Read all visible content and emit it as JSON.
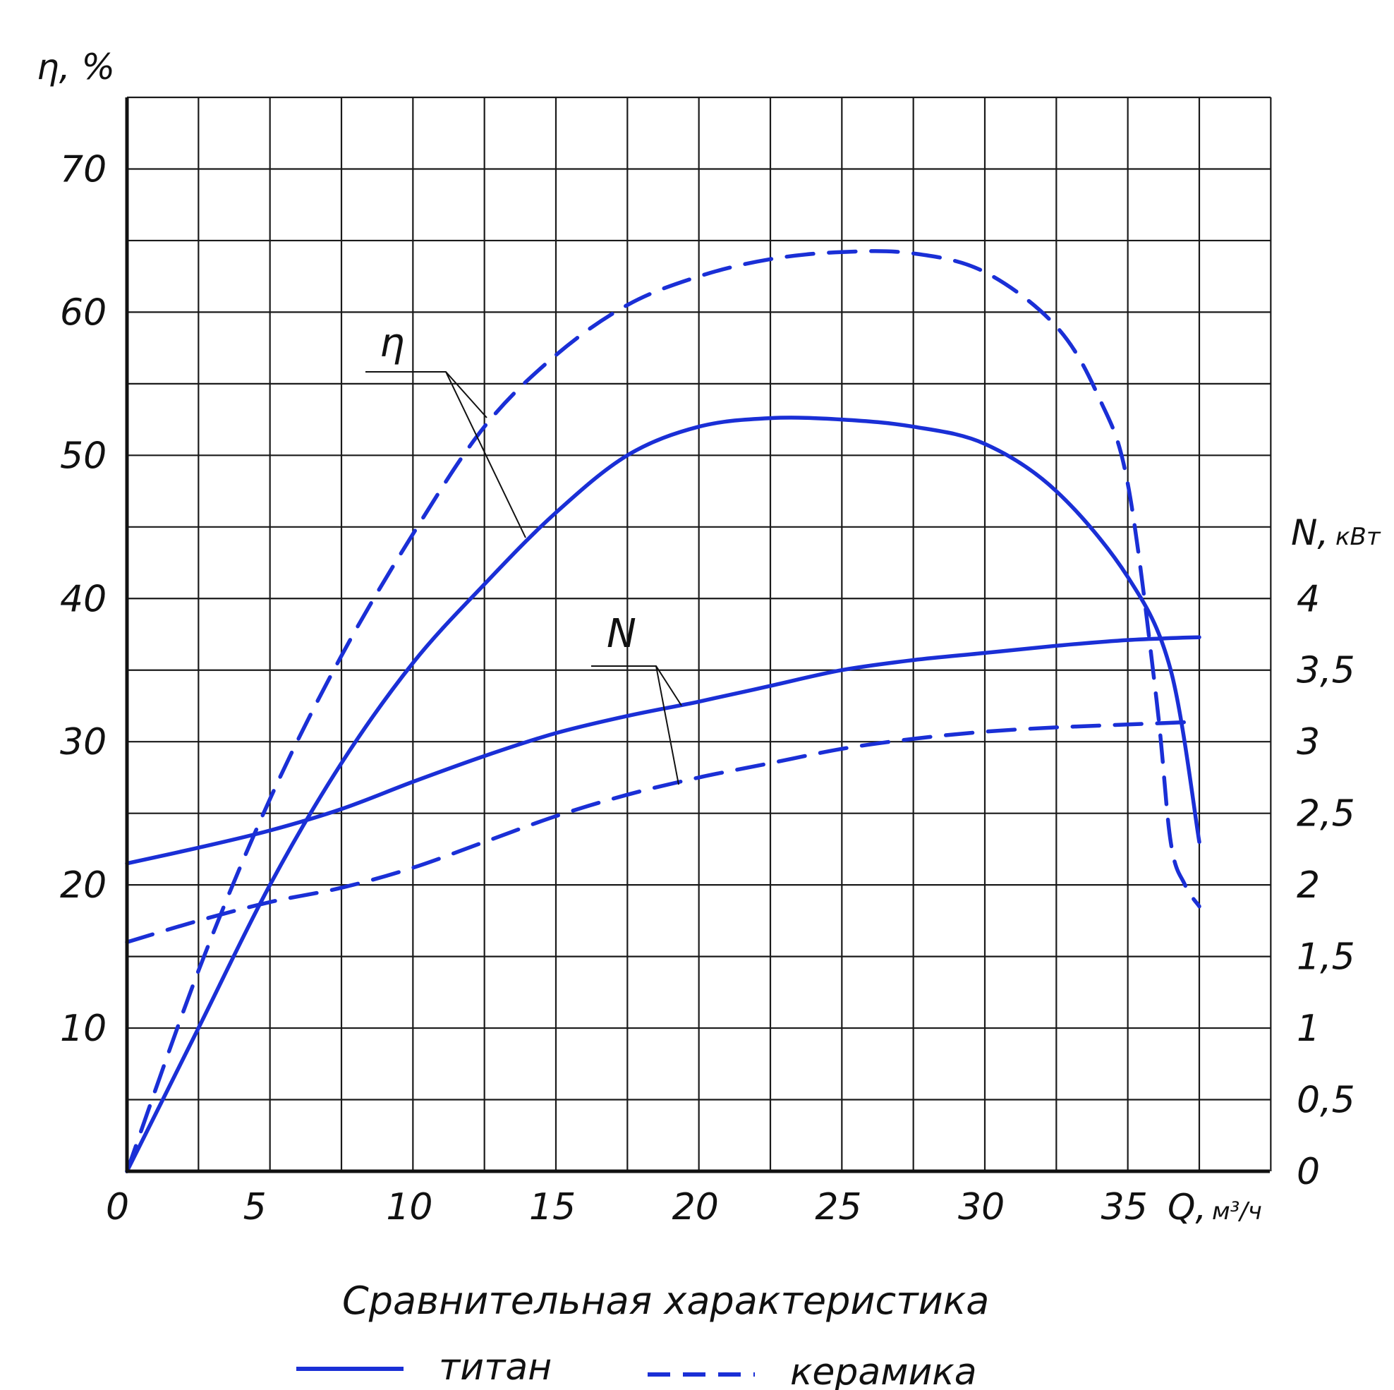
{
  "chart_data": {
    "type": "line",
    "title": "Сравнительная характеристика",
    "x_axis": {
      "label": "Q,",
      "unit": "м³/ч",
      "range": [
        0,
        40
      ],
      "ticks": [
        0,
        5,
        10,
        15,
        20,
        25,
        30,
        35
      ],
      "tick_labels": [
        "0",
        "5",
        "10",
        "15",
        "20",
        "25",
        "30",
        "35"
      ]
    },
    "y_axis_left": {
      "label": "η, %",
      "range": [
        0,
        75
      ],
      "ticks": [
        10,
        20,
        30,
        40,
        50,
        60,
        70
      ],
      "tick_labels": [
        "10",
        "20",
        "30",
        "40",
        "50",
        "60",
        "70"
      ]
    },
    "y_axis_right": {
      "label": "N,",
      "unit": "кВт",
      "range": [
        0,
        4
      ],
      "ticks": [
        0,
        0.5,
        1,
        1.5,
        2,
        2.5,
        3,
        3.5,
        4
      ],
      "tick_labels": [
        "0",
        "0,5",
        "1",
        "1,5",
        "2",
        "2,5",
        "3",
        "3,5",
        "4"
      ]
    },
    "grid": true,
    "curve_labels": [
      "η",
      "N"
    ],
    "legend": {
      "position": "bottom",
      "entries": [
        {
          "label": "титан",
          "style": "solid"
        },
        {
          "label": "керамика",
          "style": "dashed"
        }
      ]
    },
    "color": "#1a2fd6",
    "series": [
      {
        "material": "титан",
        "quantity": "η",
        "axis": "left",
        "style": "solid",
        "points": [
          [
            0,
            0
          ],
          [
            2.5,
            10
          ],
          [
            5,
            20
          ],
          [
            7.5,
            28.5
          ],
          [
            10,
            35.5
          ],
          [
            12.5,
            41
          ],
          [
            15,
            46
          ],
          [
            17.5,
            50
          ],
          [
            20,
            52
          ],
          [
            22.5,
            52.6
          ],
          [
            25,
            52.5
          ],
          [
            27.5,
            52
          ],
          [
            30,
            50.8
          ],
          [
            32.5,
            47.5
          ],
          [
            35,
            41.5
          ],
          [
            36.5,
            35
          ],
          [
            37.5,
            23
          ]
        ]
      },
      {
        "material": "керамика",
        "quantity": "η",
        "axis": "left",
        "style": "dashed",
        "points": [
          [
            0,
            0
          ],
          [
            2.5,
            14
          ],
          [
            5,
            26
          ],
          [
            7.5,
            36
          ],
          [
            10,
            44.5
          ],
          [
            12.5,
            52
          ],
          [
            15,
            57
          ],
          [
            17.5,
            60.5
          ],
          [
            20,
            62.5
          ],
          [
            22.5,
            63.7
          ],
          [
            25,
            64.2
          ],
          [
            27.5,
            64.1
          ],
          [
            30,
            62.8
          ],
          [
            32.5,
            59
          ],
          [
            34,
            54
          ],
          [
            35,
            48
          ],
          [
            36,
            33
          ],
          [
            36.5,
            23
          ],
          [
            37,
            20
          ],
          [
            37.5,
            18.5
          ]
        ]
      },
      {
        "material": "титан",
        "quantity": "N",
        "axis": "right",
        "style": "solid",
        "points": [
          [
            0,
            2.15
          ],
          [
            2.5,
            2.26
          ],
          [
            5,
            2.38
          ],
          [
            7.5,
            2.53
          ],
          [
            10,
            2.72
          ],
          [
            12.5,
            2.9
          ],
          [
            15,
            3.06
          ],
          [
            17.5,
            3.18
          ],
          [
            20,
            3.28
          ],
          [
            22.5,
            3.39
          ],
          [
            25,
            3.5
          ],
          [
            27.5,
            3.57
          ],
          [
            30,
            3.62
          ],
          [
            32.5,
            3.67
          ],
          [
            35,
            3.71
          ],
          [
            37.5,
            3.73
          ]
        ]
      },
      {
        "material": "керамика",
        "quantity": "N",
        "axis": "right",
        "style": "dashed",
        "points": [
          [
            0,
            1.6
          ],
          [
            2.5,
            1.75
          ],
          [
            5,
            1.88
          ],
          [
            7.5,
            1.98
          ],
          [
            10,
            2.12
          ],
          [
            12.5,
            2.3
          ],
          [
            15,
            2.48
          ],
          [
            17.5,
            2.63
          ],
          [
            20,
            2.75
          ],
          [
            22.5,
            2.85
          ],
          [
            25,
            2.95
          ],
          [
            27.5,
            3.02
          ],
          [
            30,
            3.07
          ],
          [
            32.5,
            3.1
          ],
          [
            35,
            3.12
          ],
          [
            37.5,
            3.14
          ]
        ]
      }
    ]
  }
}
